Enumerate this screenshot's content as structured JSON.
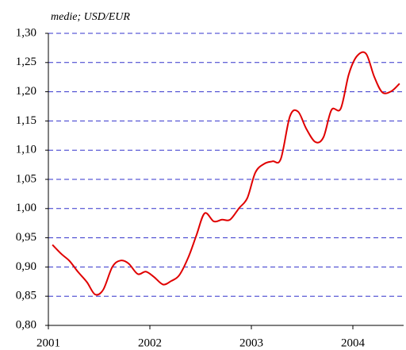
{
  "chart_data": {
    "type": "line",
    "subtitle": "medie; USD/EUR",
    "x": [
      2001.04,
      2001.13,
      2001.21,
      2001.29,
      2001.38,
      2001.46,
      2001.54,
      2001.63,
      2001.71,
      2001.79,
      2001.88,
      2001.96,
      2002.04,
      2002.13,
      2002.21,
      2002.29,
      2002.38,
      2002.46,
      2002.54,
      2002.63,
      2002.71,
      2002.79,
      2002.88,
      2002.96,
      2003.04,
      2003.13,
      2003.21,
      2003.29,
      2003.38,
      2003.46,
      2003.54,
      2003.63,
      2003.71,
      2003.79,
      2003.88,
      2003.96,
      2004.04,
      2004.13,
      2004.21,
      2004.29,
      2004.38,
      2004.46
    ],
    "series": [
      {
        "name": "USD/EUR",
        "color": "#e00000",
        "values": [
          0.938,
          0.922,
          0.91,
          0.892,
          0.874,
          0.853,
          0.861,
          0.9,
          0.911,
          0.906,
          0.888,
          0.892,
          0.883,
          0.87,
          0.876,
          0.886,
          0.917,
          0.955,
          0.992,
          0.978,
          0.981,
          0.981,
          1.001,
          1.018,
          1.062,
          1.077,
          1.081,
          1.085,
          1.158,
          1.166,
          1.137,
          1.114,
          1.122,
          1.169,
          1.171,
          1.23,
          1.261,
          1.265,
          1.226,
          1.199,
          1.201,
          1.214
        ]
      }
    ],
    "xlim": [
      2001,
      2004.5
    ],
    "xticks": [
      2001,
      2002,
      2003,
      2004
    ],
    "ylim": [
      0.8,
      1.3
    ],
    "yticks": [
      {
        "value": 0.8,
        "label": "0,80"
      },
      {
        "value": 0.85,
        "label": "0,85"
      },
      {
        "value": 0.9,
        "label": "0,90"
      },
      {
        "value": 0.95,
        "label": "0,95"
      },
      {
        "value": 1.0,
        "label": "1,00"
      },
      {
        "value": 1.05,
        "label": "1,05"
      },
      {
        "value": 1.1,
        "label": "1,10"
      },
      {
        "value": 1.15,
        "label": "1,15"
      },
      {
        "value": 1.2,
        "label": "1,20"
      },
      {
        "value": 1.25,
        "label": "1,25"
      },
      {
        "value": 1.3,
        "label": "1,30"
      }
    ],
    "grid": true,
    "grid_color": "#3333cc"
  }
}
